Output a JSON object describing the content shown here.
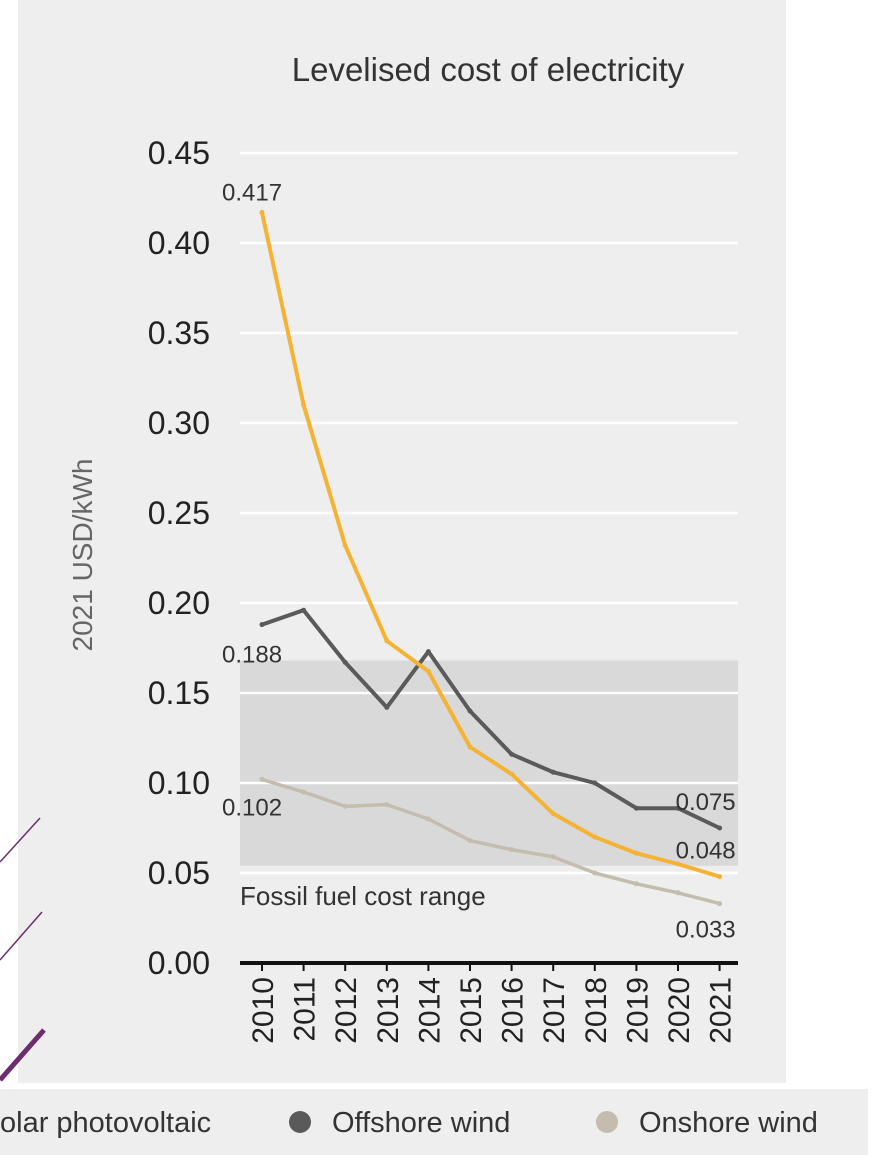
{
  "chart_data": {
    "type": "line",
    "title": "Levelised cost of electricity",
    "ylabel": "2021 USD/kWh",
    "xlabel": "",
    "x": [
      "2010",
      "2011",
      "2012",
      "2013",
      "2014",
      "2015",
      "2016",
      "2017",
      "2018",
      "2019",
      "2020",
      "2021"
    ],
    "ylim": [
      0,
      0.45
    ],
    "yticks": [
      "0.00",
      "0.05",
      "0.10",
      "0.15",
      "0.20",
      "0.25",
      "0.30",
      "0.35",
      "0.40",
      "0.45"
    ],
    "grid": true,
    "series": [
      {
        "name": "Solar photovoltaic",
        "color": "#f5b335",
        "values": [
          0.417,
          0.31,
          0.232,
          0.179,
          0.162,
          0.12,
          0.105,
          0.083,
          0.07,
          0.061,
          0.055,
          0.048
        ]
      },
      {
        "name": "Offshore wind",
        "color": "#5a5a5a",
        "values": [
          0.188,
          0.196,
          0.167,
          0.142,
          0.173,
          0.14,
          0.116,
          0.106,
          0.1,
          0.086,
          0.086,
          0.075
        ]
      },
      {
        "name": "Onshore wind",
        "color": "#c4bcac",
        "values": [
          0.102,
          0.095,
          0.087,
          0.088,
          0.08,
          0.068,
          0.063,
          0.059,
          0.05,
          0.044,
          0.039,
          0.033
        ]
      }
    ],
    "data_labels": [
      {
        "series": 0,
        "index": 0,
        "text": "0.417"
      },
      {
        "series": 1,
        "index": 0,
        "text": "0.188"
      },
      {
        "series": 2,
        "index": 0,
        "text": "0.102"
      },
      {
        "series": 1,
        "index": 11,
        "text": "0.075"
      },
      {
        "series": 0,
        "index": 11,
        "text": "0.048"
      },
      {
        "series": 2,
        "index": 11,
        "text": "0.033"
      }
    ],
    "band": {
      "label": "Fossil fuel cost range",
      "range": [
        0.054,
        0.168
      ],
      "color": "#d9d9d9"
    },
    "legend": {
      "placement": "bottom",
      "entries": [
        "olar photovoltaic",
        "Offshore wind",
        "Onshore wind"
      ]
    }
  },
  "accent": "#6b2d6e"
}
